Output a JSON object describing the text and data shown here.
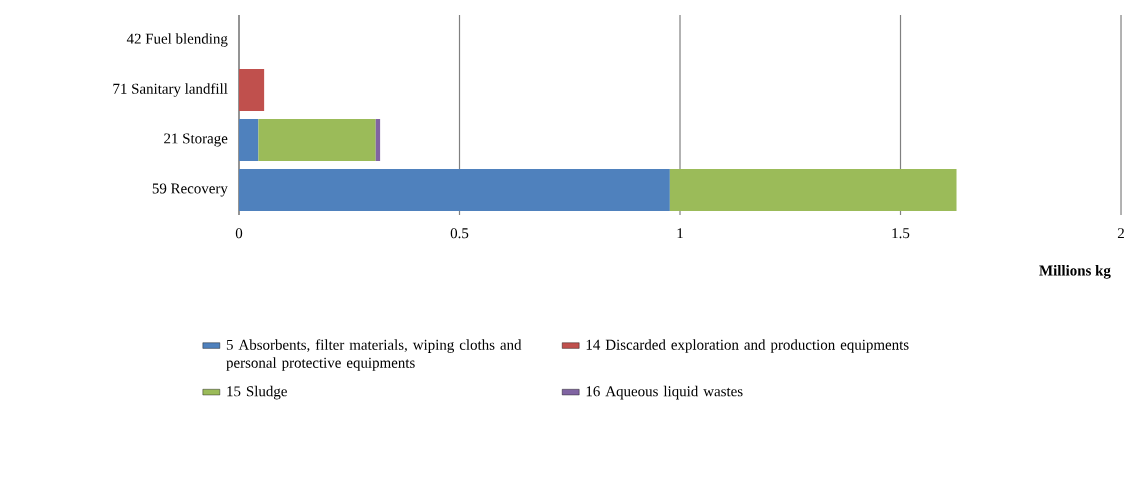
{
  "chart_data": {
    "type": "bar",
    "orientation": "horizontal",
    "stacked": true,
    "categories": [
      "42 Fuel blending",
      "71 Sanitary landfill",
      "21 Storage",
      "59 Recovery"
    ],
    "series": [
      {
        "name": "5 Absorbents, filter materials, wiping cloths and personal protective equipments",
        "color": "#4f81bd",
        "values": [
          null,
          null,
          0.044,
          0.977
        ]
      },
      {
        "name": "14 Discarded exploration and production equipments",
        "color": "#c0504d",
        "values": [
          null,
          0.057,
          null,
          null
        ]
      },
      {
        "name": "15 Sludge",
        "color": "#9bbb59",
        "values": [
          null,
          null,
          0.266,
          0.65
        ]
      },
      {
        "name": "16 Aqueous liquid wastes",
        "color": "#8064a2",
        "values": [
          null,
          null,
          0.01,
          null
        ]
      }
    ],
    "xlim": [
      0,
      2
    ],
    "xticks": [
      0,
      0.5,
      1,
      1.5,
      2
    ],
    "xlabel": "Millions kg",
    "grid": "x",
    "legend": "bottom"
  }
}
